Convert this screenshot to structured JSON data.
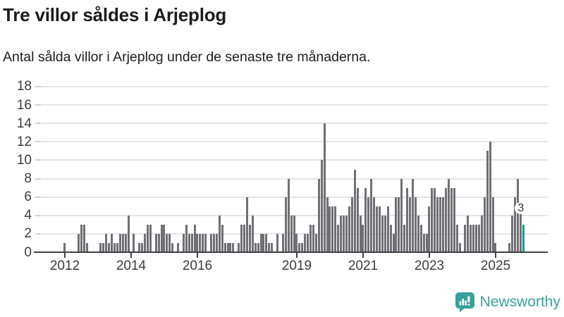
{
  "title": "Tre villor såldes i Arjeplog",
  "subtitle": "Antal sålda villor i Arjeplog under de senaste tre månaderna.",
  "colors": {
    "bar": "#706f75",
    "highlight": "#0d9e94",
    "axis": "#414144",
    "grid": "#e4e4e4",
    "tick_label": "#3c3c3c",
    "logo": "#3aa39b"
  },
  "branding": {
    "name": "Newsworthy"
  },
  "highlight_label": "3",
  "chart_data": {
    "type": "bar",
    "title": "Tre villor såldes i Arjeplog",
    "subtitle": "Antal sålda villor i Arjeplog under de senaste tre månaderna.",
    "ylim": [
      0,
      18
    ],
    "y_ticks": [
      0,
      2,
      4,
      6,
      8,
      10,
      12,
      14,
      16,
      18
    ],
    "x_tick_years": [
      2012,
      2014,
      2016,
      2019,
      2021,
      2023,
      2025
    ],
    "grid": "horizontal",
    "legend": "none",
    "highlight": {
      "position": "last-bar",
      "value": 3,
      "label": "3",
      "color": "#0d9e94"
    },
    "series": [
      {
        "year": 2012,
        "monthly_values": [
          1,
          0,
          0,
          0,
          0,
          2,
          3,
          3,
          1,
          0,
          0,
          0
        ]
      },
      {
        "year": 2013,
        "monthly_values": [
          0,
          1,
          1,
          2,
          1,
          2,
          1,
          1,
          2,
          2,
          2,
          4
        ]
      },
      {
        "year": 2014,
        "monthly_values": [
          0,
          2,
          0,
          1,
          1,
          2,
          3,
          3,
          0,
          2,
          2,
          3
        ]
      },
      {
        "year": 2015,
        "monthly_values": [
          3,
          2,
          2,
          1,
          0,
          1,
          0,
          2,
          3,
          2,
          2,
          3
        ]
      },
      {
        "year": 2016,
        "monthly_values": [
          2,
          2,
          2,
          2,
          0,
          2,
          2,
          2,
          4,
          3,
          1,
          1
        ]
      },
      {
        "year": 2017,
        "monthly_values": [
          1,
          1,
          0,
          1,
          3,
          3,
          6,
          3,
          4,
          1,
          1,
          2
        ]
      },
      {
        "year": 2018,
        "monthly_values": [
          2,
          2,
          1,
          1,
          0,
          2,
          0,
          2,
          6,
          8,
          4,
          4
        ]
      },
      {
        "year": 2019,
        "monthly_values": [
          2,
          1,
          1,
          2,
          2,
          3,
          3,
          2,
          8,
          10,
          14,
          6
        ]
      },
      {
        "year": 2020,
        "monthly_values": [
          5,
          5,
          5,
          3,
          4,
          4,
          4,
          5,
          6,
          9,
          7,
          4
        ]
      },
      {
        "year": 2021,
        "monthly_values": [
          3,
          7,
          6,
          8,
          6,
          5,
          5,
          4,
          4,
          5,
          3,
          2
        ]
      },
      {
        "year": 2022,
        "monthly_values": [
          6,
          6,
          8,
          3,
          7,
          6,
          8,
          6,
          4,
          3,
          2,
          2
        ]
      },
      {
        "year": 2023,
        "monthly_values": [
          5,
          7,
          7,
          6,
          6,
          6,
          7,
          8,
          7,
          7,
          3,
          1
        ]
      },
      {
        "year": 2024,
        "monthly_values": [
          0,
          3,
          4,
          3,
          3,
          3,
          3,
          4,
          6,
          11,
          12,
          6
        ]
      },
      {
        "year": 2025,
        "monthly_values": [
          1,
          0,
          0,
          0,
          0,
          1,
          4,
          6,
          8,
          5,
          3
        ]
      }
    ]
  }
}
